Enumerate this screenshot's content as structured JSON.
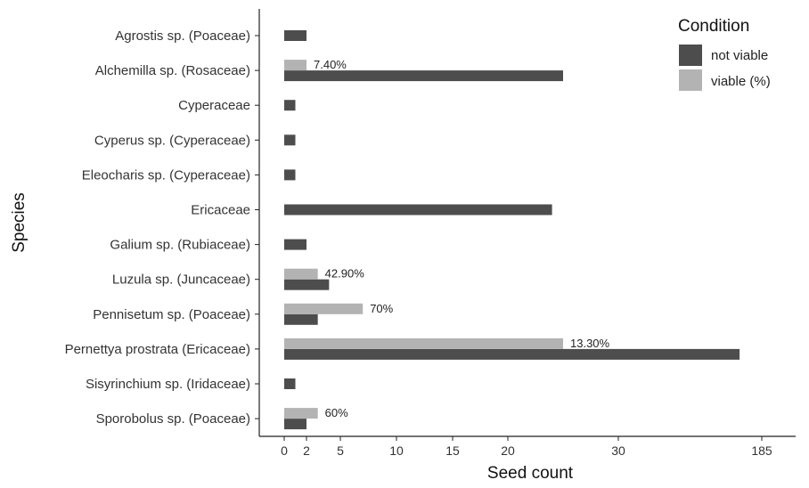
{
  "chart_data": {
    "type": "bar",
    "orientation": "horizontal",
    "categories": [
      "Agrostis sp. (Poaceae)",
      "Alchemilla sp. (Rosaceae)",
      "Cyperaceae",
      "Cyperus sp. (Cyperaceae)",
      "Eleocharis sp. (Cyperaceae)",
      "Ericaceae",
      "Galium sp. (Rubiaceae)",
      "Luzula sp. (Juncaceae)",
      "Pennisetum sp. (Poaceae)",
      "Pernettya prostrata (Ericaceae)",
      "Sisyrinchium sp. (Iridaceae)",
      "Sporobolus sp. (Poaceae)"
    ],
    "series": [
      {
        "name": "not viable",
        "color": "#4d4d4d",
        "values": [
          2,
          25,
          1,
          1,
          1,
          24,
          2,
          4,
          3,
          161,
          1,
          2
        ]
      },
      {
        "name": "viable (%)",
        "color": "#b3b3b3",
        "values": [
          null,
          2,
          null,
          null,
          null,
          null,
          null,
          3,
          7,
          25,
          null,
          3
        ],
        "labels": [
          null,
          "7.40%",
          null,
          null,
          null,
          null,
          null,
          "42.90%",
          "70%",
          "13.30%",
          null,
          "60%"
        ]
      }
    ],
    "x_ticks": [
      "0",
      "2",
      "5",
      "10",
      "15",
      "20",
      "30",
      "185"
    ],
    "x_tick_values": [
      0,
      2,
      5,
      10,
      15,
      20,
      30,
      185
    ],
    "x_scale": "non-linear (compressed above 30)",
    "xlabel": "Seed count",
    "ylabel": "Species",
    "legend": {
      "title": "Condition",
      "position": "top-right"
    },
    "grid": false
  }
}
